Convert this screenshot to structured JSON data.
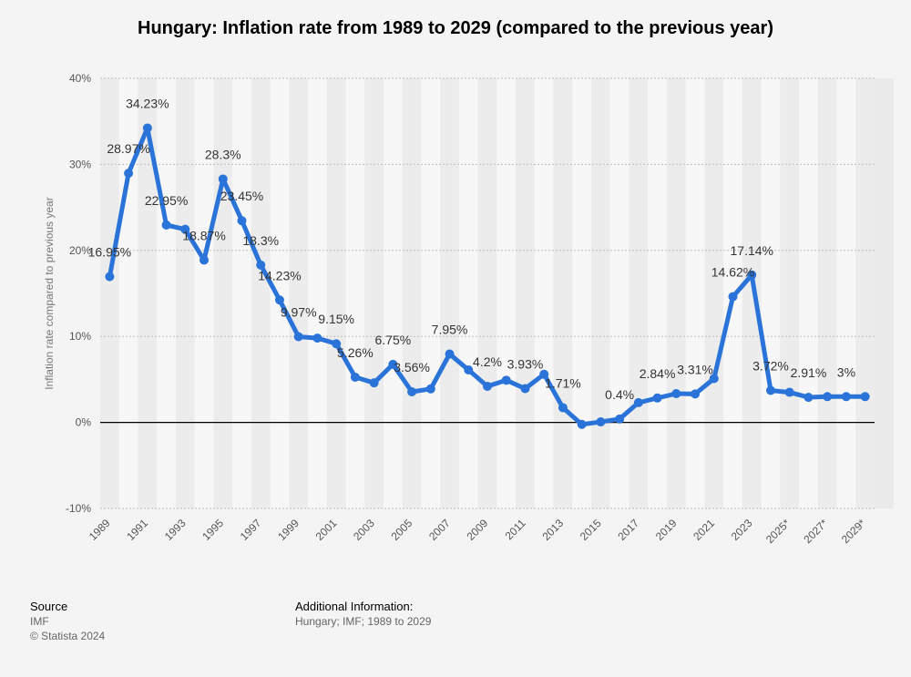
{
  "chart_data": {
    "type": "line",
    "title": "Hungary: Inflation rate from 1989 to 2029 (compared to the previous year)",
    "ylabel": "Inflation rate compared to previous year",
    "xlabel": "",
    "ylim": [
      -10,
      40
    ],
    "y_ticks": [
      "40%",
      "30%",
      "20%",
      "10%",
      "0%",
      "-10%"
    ],
    "y_tick_values": [
      40,
      30,
      20,
      10,
      0,
      -10
    ],
    "grid": true,
    "series_color": "#2a74d9",
    "x": [
      "1989",
      "1990",
      "1991",
      "1992",
      "1993",
      "1994",
      "1995",
      "1996",
      "1997",
      "1998",
      "1999",
      "2000",
      "2001",
      "2002",
      "2003",
      "2004",
      "2005",
      "2006",
      "2007",
      "2008",
      "2009",
      "2010",
      "2011",
      "2012",
      "2013",
      "2014",
      "2015",
      "2016",
      "2017",
      "2018",
      "2019",
      "2020",
      "2021",
      "2022",
      "2023",
      "2024",
      "2025*",
      "2026*",
      "2027*",
      "2028*",
      "2029*"
    ],
    "values": [
      16.95,
      28.97,
      34.23,
      22.95,
      22.45,
      18.87,
      28.3,
      23.45,
      18.3,
      14.23,
      9.97,
      9.8,
      9.15,
      5.26,
      4.6,
      6.75,
      3.56,
      3.9,
      7.95,
      6.1,
      4.2,
      4.9,
      3.93,
      5.6,
      1.71,
      -0.23,
      0.06,
      0.4,
      2.3,
      2.84,
      3.35,
      3.31,
      5.1,
      14.62,
      17.14,
      3.72,
      3.5,
      2.91,
      3.0,
      3.0,
      3.0
    ],
    "x_tick_labels": [
      "1989",
      "1991",
      "1993",
      "1995",
      "1997",
      "1999",
      "2001",
      "2003",
      "2005",
      "2007",
      "2009",
      "2011",
      "2013",
      "2015",
      "2017",
      "2019",
      "2021",
      "2023",
      "2025*",
      "2027*",
      "2029*"
    ],
    "data_labels": [
      {
        "i": 0,
        "text": "16.95%"
      },
      {
        "i": 1,
        "text": "28.97%"
      },
      {
        "i": 2,
        "text": "34.23%"
      },
      {
        "i": 3,
        "text": "22.95%"
      },
      {
        "i": 5,
        "text": "18.87%"
      },
      {
        "i": 6,
        "text": "28.3%"
      },
      {
        "i": 7,
        "text": "23.45%"
      },
      {
        "i": 8,
        "text": "18.3%"
      },
      {
        "i": 9,
        "text": "14.23%"
      },
      {
        "i": 10,
        "text": "9.97%"
      },
      {
        "i": 12,
        "text": "9.15%"
      },
      {
        "i": 13,
        "text": "5.26%"
      },
      {
        "i": 15,
        "text": "6.75%"
      },
      {
        "i": 16,
        "text": "3.56%"
      },
      {
        "i": 18,
        "text": "7.95%"
      },
      {
        "i": 20,
        "text": "4.2%"
      },
      {
        "i": 22,
        "text": "3.93%"
      },
      {
        "i": 24,
        "text": "1.71%"
      },
      {
        "i": 27,
        "text": "0.4%"
      },
      {
        "i": 29,
        "text": "2.84%"
      },
      {
        "i": 31,
        "text": "3.31%"
      },
      {
        "i": 33,
        "text": "14.62%"
      },
      {
        "i": 34,
        "text": "17.14%"
      },
      {
        "i": 35,
        "text": "3.72%"
      },
      {
        "i": 37,
        "text": "2.91%"
      },
      {
        "i": 39,
        "text": "3%"
      }
    ]
  },
  "footer": {
    "source_heading": "Source",
    "source_name": "IMF",
    "copyright": "© Statista 2024",
    "info_heading": "Additional Information:",
    "info_text": "Hungary; IMF; 1989 to 2029"
  }
}
